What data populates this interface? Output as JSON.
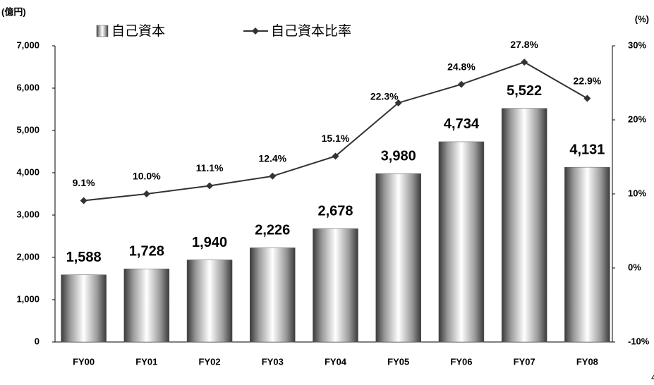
{
  "chart_data": {
    "type": "bar",
    "y_label": "(億円)",
    "y2_label": "(%)",
    "page_number": "4",
    "categories": [
      "FY00",
      "FY01",
      "FY02",
      "FY03",
      "FY04",
      "FY05",
      "FY06",
      "FY07",
      "FY08"
    ],
    "series": [
      {
        "name": "自己資本",
        "type": "bar",
        "color": "#8a8a8a",
        "values": [
          1588,
          1728,
          1940,
          2226,
          2678,
          3980,
          4734,
          5522,
          4131
        ],
        "value_labels": [
          "1,588",
          "1,728",
          "1,940",
          "2,226",
          "2,678",
          "3,980",
          "4,734",
          "5,522",
          "4,131"
        ]
      },
      {
        "name": "自己資本比率",
        "type": "line",
        "axis": "y2",
        "color": "#333333",
        "values": [
          9.1,
          10.0,
          11.1,
          12.4,
          15.1,
          22.3,
          24.8,
          27.8,
          22.9
        ],
        "value_labels": [
          "9.1%",
          "10.0%",
          "11.1%",
          "12.4%",
          "15.1%",
          "22.3%",
          "24.8%",
          "27.8%",
          "22.9%"
        ]
      }
    ],
    "ylim": [
      0,
      7000
    ],
    "yticks": [
      0,
      {
        "value": 1000,
        "label": "1,000"
      },
      {
        "value": 2000,
        "label": "2,000"
      },
      {
        "value": 3000,
        "label": "3,000"
      },
      {
        "value": 4000,
        "label": "4,000"
      },
      {
        "value": 5000,
        "label": "5,000"
      },
      {
        "value": 6000,
        "label": "6,000"
      },
      {
        "value": 7000,
        "label": "7,000"
      }
    ],
    "y2lim": [
      -10,
      30
    ],
    "y2ticks": [
      {
        "value": -10,
        "label": "-10%"
      },
      {
        "value": 0,
        "label": "0%"
      },
      {
        "value": 10,
        "label": "10%"
      },
      {
        "value": 20,
        "label": "20%"
      },
      {
        "value": 30,
        "label": "30%"
      }
    ],
    "grid": false
  }
}
